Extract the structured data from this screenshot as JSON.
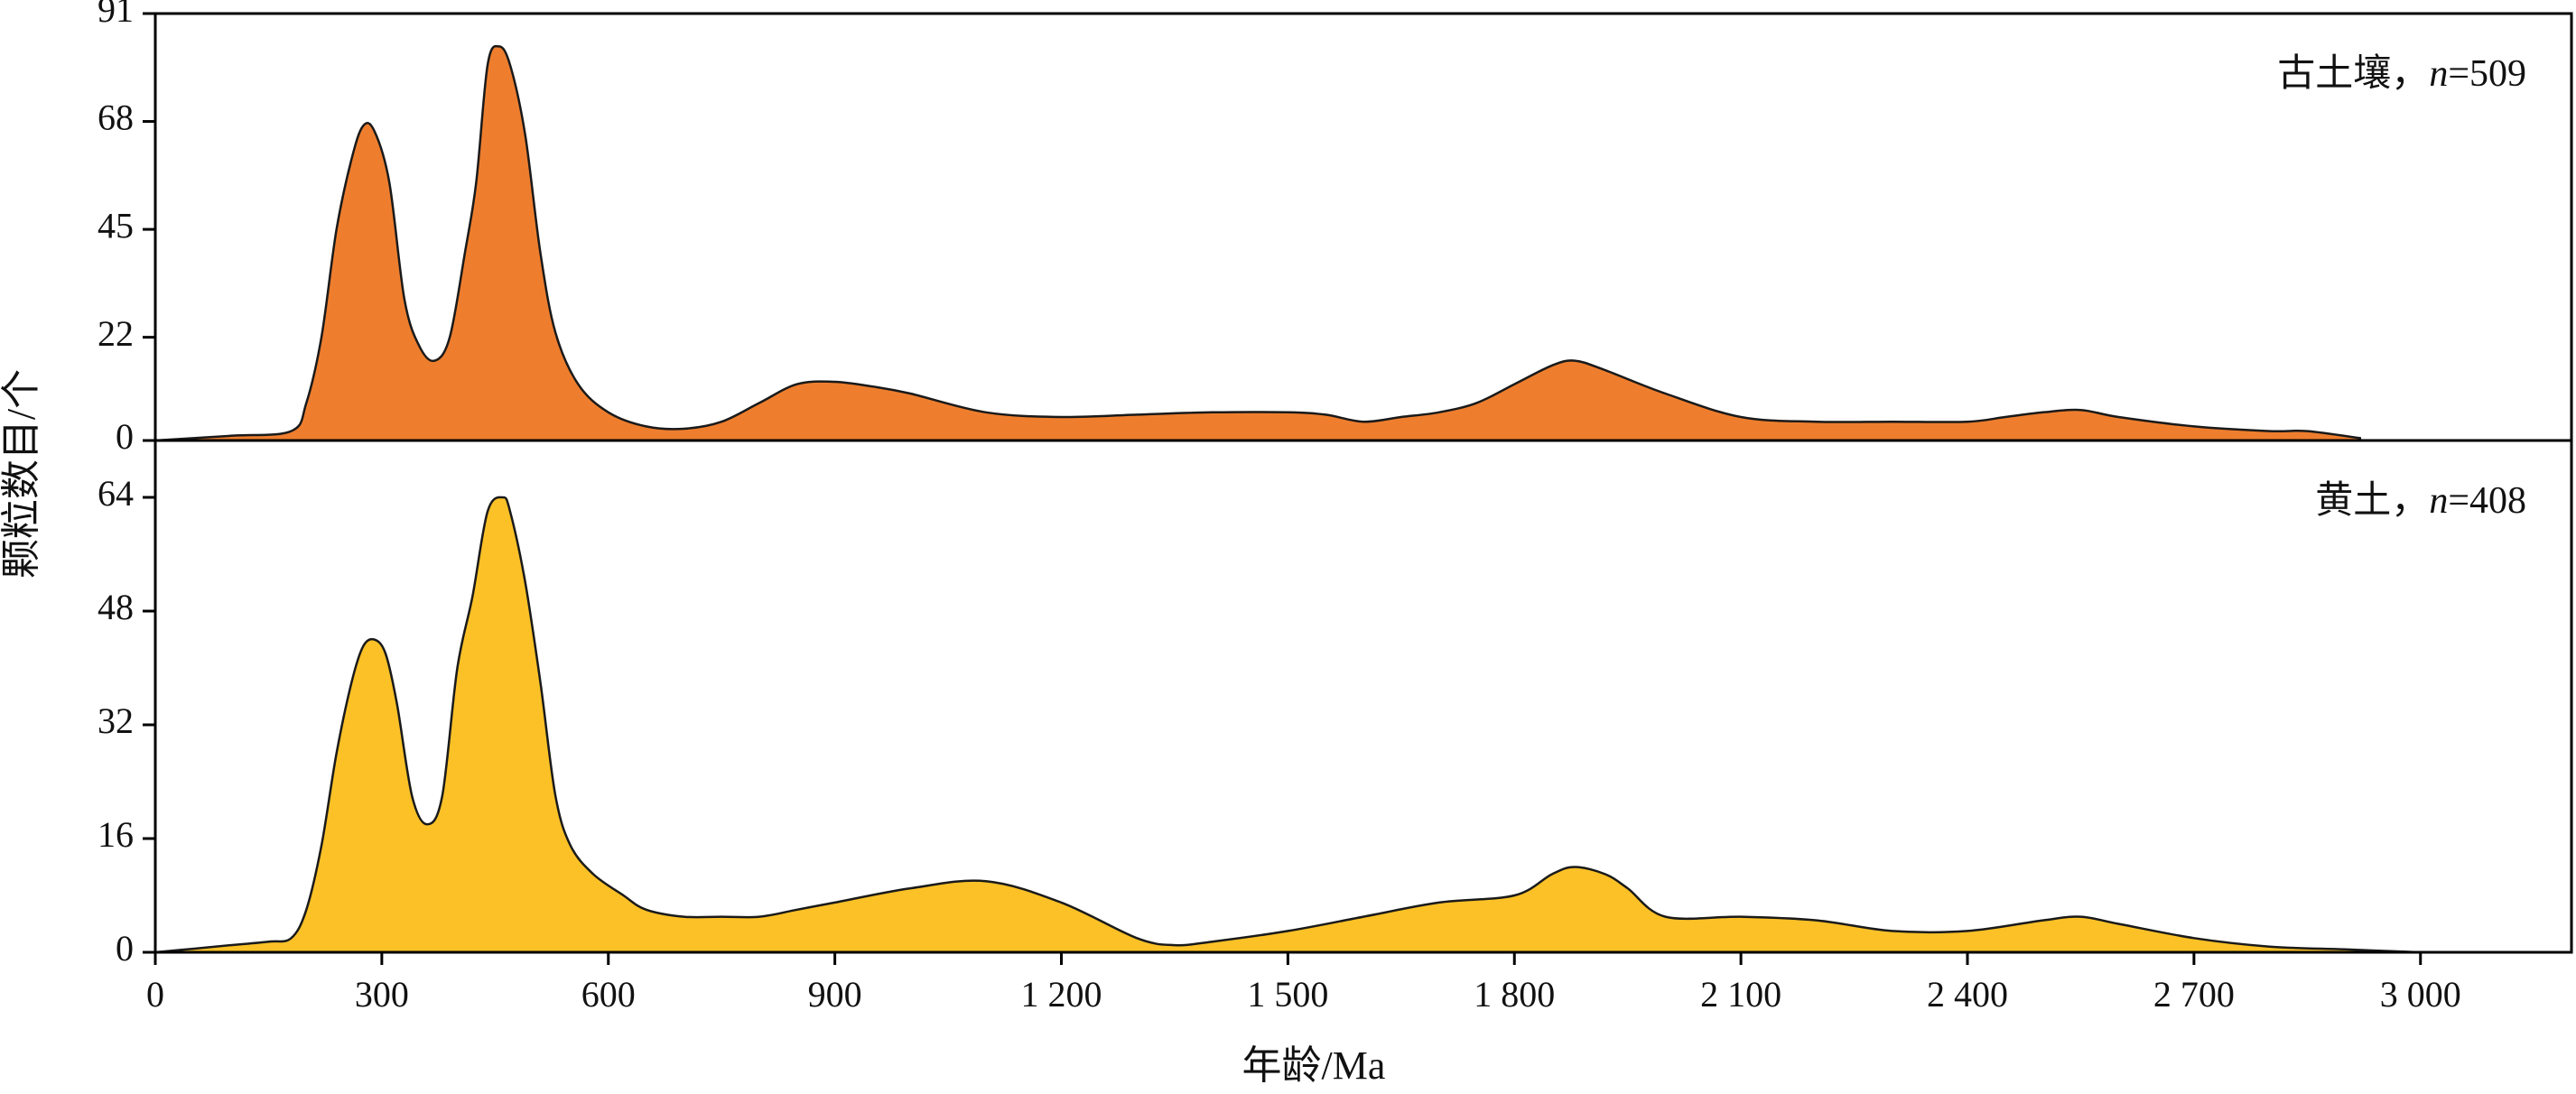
{
  "chart_data": {
    "type": "area",
    "xlabel": "年龄/Ma",
    "ylabel": "颗粒数目/个",
    "xlim": [
      0,
      3200
    ],
    "x_ticks": [
      0,
      300,
      600,
      900,
      1200,
      1500,
      1800,
      2100,
      2400,
      2700,
      3000
    ],
    "x_tick_labels": [
      "0",
      "300",
      "600",
      "900",
      "1 200",
      "1 500",
      "1 800",
      "2 100",
      "2 400",
      "2 700",
      "3 000"
    ],
    "grid": false,
    "panels": [
      {
        "label_prefix": "古土壤，",
        "label_n": "n",
        "label_suffix": "=509",
        "color": "#EE7E2E",
        "ylim": [
          0,
          91
        ],
        "y_ticks": [
          0,
          22,
          45,
          68,
          91
        ],
        "x": [
          0,
          100,
          180,
          200,
          220,
          240,
          260,
          275,
          290,
          310,
          330,
          350,
          370,
          390,
          410,
          425,
          440,
          455,
          470,
          490,
          510,
          530,
          560,
          600,
          650,
          700,
          750,
          800,
          850,
          900,
          950,
          1000,
          1100,
          1200,
          1300,
          1400,
          1500,
          1550,
          1600,
          1650,
          1700,
          1750,
          1800,
          1850,
          1880,
          1920,
          2000,
          2100,
          2200,
          2300,
          2400,
          2450,
          2500,
          2550,
          2600,
          2700,
          2800,
          2850,
          2920
        ],
        "values": [
          0,
          1,
          2,
          8,
          22,
          45,
          60,
          67,
          66,
          55,
          30,
          20,
          17,
          22,
          40,
          55,
          80,
          84,
          80,
          65,
          40,
          23,
          12,
          6,
          3,
          2.5,
          4,
          8,
          12,
          12.5,
          11.5,
          10,
          6,
          5,
          5.5,
          6,
          6,
          5.5,
          4,
          5,
          6,
          8,
          12,
          16,
          17,
          15,
          10,
          5,
          4,
          4,
          4,
          5,
          6,
          6.5,
          5,
          3,
          2,
          2,
          0.5
        ]
      },
      {
        "label_prefix": "黄土，",
        "label_n": "n",
        "label_suffix": "=408",
        "color": "#FBC127",
        "ylim": [
          0,
          72
        ],
        "y_ticks": [
          0,
          16,
          32,
          48,
          64
        ],
        "x": [
          0,
          50,
          100,
          150,
          180,
          200,
          220,
          240,
          260,
          275,
          290,
          305,
          320,
          340,
          360,
          380,
          400,
          420,
          440,
          460,
          470,
          490,
          510,
          530,
          550,
          580,
          620,
          650,
          700,
          750,
          800,
          850,
          900,
          1000,
          1100,
          1200,
          1300,
          1350,
          1400,
          1500,
          1600,
          1700,
          1800,
          1850,
          1880,
          1920,
          1950,
          2000,
          2100,
          2200,
          2300,
          2400,
          2500,
          2550,
          2600,
          2700,
          2800,
          2900,
          3000
        ],
        "values": [
          0,
          0.5,
          1,
          1.5,
          2,
          6,
          15,
          28,
          38,
          43,
          44,
          42,
          35,
          22,
          18,
          22,
          40,
          50,
          62,
          64,
          62,
          52,
          38,
          22,
          15,
          11,
          8,
          6,
          5,
          5,
          5,
          6,
          7,
          9,
          10,
          7,
          2,
          1,
          1.5,
          3,
          5,
          7,
          8,
          11,
          12,
          11,
          9,
          5,
          5,
          4.5,
          3,
          3,
          4.5,
          5,
          4,
          2,
          0.8,
          0.4,
          0
        ]
      }
    ]
  }
}
